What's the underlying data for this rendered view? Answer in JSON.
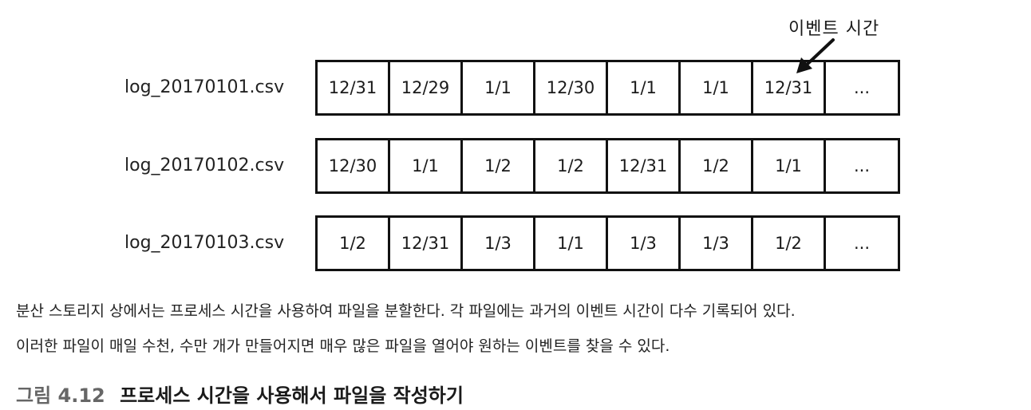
{
  "callout": {
    "label": "이벤트 시간"
  },
  "rows": [
    {
      "label": "log_20170101.csv",
      "cells": [
        "12/31",
        "12/29",
        "1/1",
        "12/30",
        "1/1",
        "1/1",
        "12/31",
        "..."
      ]
    },
    {
      "label": "log_20170102.csv",
      "cells": [
        "12/30",
        "1/1",
        "1/2",
        "1/2",
        "12/31",
        "1/2",
        "1/1",
        "..."
      ]
    },
    {
      "label": "log_20170103.csv",
      "cells": [
        "1/2",
        "12/31",
        "1/3",
        "1/1",
        "1/3",
        "1/3",
        "1/2",
        "..."
      ]
    }
  ],
  "caption": {
    "line1": "분산 스토리지 상에서는 프로세스 시간을 사용하여 파일을 분할한다. 각 파일에는 과거의 이벤트 시간이 다수 기록되어 있다.",
    "line2": "이러한 파일이 매일 수천, 수만 개가 만들어지면 매우 많은 파일을 열어야 원하는 이벤트를 찾을 수 있다."
  },
  "figure": {
    "number": "그림 4.12",
    "title": "프로세스 시간을 사용해서 파일을 작성하기"
  }
}
